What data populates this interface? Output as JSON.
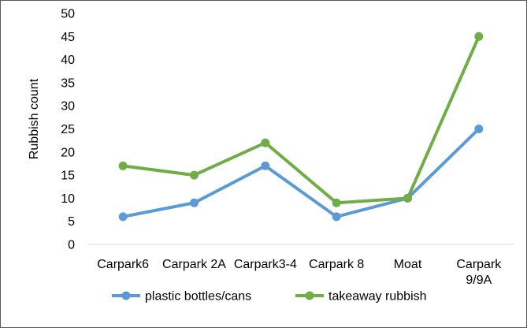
{
  "chart_data": {
    "type": "line",
    "title": "",
    "xlabel": "",
    "ylabel": "Rubbish count",
    "categories": [
      "Carpark6",
      "Carpark 2A",
      "Carpark3-4",
      "Carpark 8",
      "Moat",
      "Carpark 9/9A"
    ],
    "y_ticks": [
      "0",
      "5",
      "10",
      "15",
      "20",
      "25",
      "30",
      "35",
      "40",
      "45",
      "50"
    ],
    "ylim": [
      0,
      50
    ],
    "grid": false,
    "legend_position": "bottom",
    "series": [
      {
        "name": "plastic bottles/cans",
        "color": "#5B9BD5",
        "values": [
          6,
          9,
          17,
          6,
          10,
          25
        ]
      },
      {
        "name": "takeaway rubbish",
        "color": "#70AD47",
        "values": [
          17,
          15,
          22,
          9,
          10,
          45
        ]
      }
    ]
  }
}
